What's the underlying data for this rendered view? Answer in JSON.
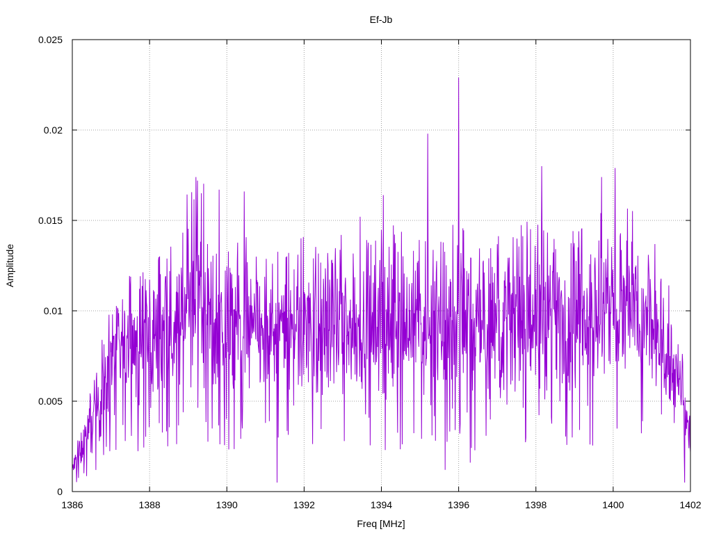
{
  "chart_data": {
    "type": "line",
    "title": "Ef-Jb",
    "xlabel": "Freq [MHz]",
    "ylabel": "Amplitude",
    "xlim": [
      1386,
      1402
    ],
    "ylim": [
      0,
      0.025
    ],
    "xticks": [
      1386,
      1388,
      1390,
      1392,
      1394,
      1396,
      1398,
      1400,
      1402
    ],
    "xtick_labels": [
      "1386",
      "1388",
      "1390",
      "1392",
      "1394",
      "1396",
      "1398",
      "1400",
      "1402"
    ],
    "yticks": [
      0,
      0.005,
      0.01,
      0.015,
      0.02,
      0.025
    ],
    "ytick_labels": [
      "0",
      "0.005",
      "0.01",
      "0.015",
      "0.02",
      "0.025"
    ],
    "grid": true,
    "legend": "none",
    "series_color": "#9400d3",
    "envelope_x": [
      1386.0,
      1386.2,
      1386.5,
      1386.8,
      1387.0,
      1387.5,
      1388.0,
      1388.5,
      1389.0,
      1389.3,
      1389.6,
      1390.0,
      1391.0,
      1392.0,
      1393.0,
      1394.0,
      1395.0,
      1396.0,
      1397.0,
      1398.0,
      1399.0,
      1400.0,
      1400.5,
      1401.0,
      1401.5,
      1401.8,
      1402.0
    ],
    "envelope_y": [
      0.0012,
      0.0022,
      0.0038,
      0.0055,
      0.0072,
      0.008,
      0.0085,
      0.0088,
      0.0105,
      0.011,
      0.01,
      0.009,
      0.0088,
      0.009,
      0.009,
      0.0092,
      0.0095,
      0.0092,
      0.009,
      0.0095,
      0.0098,
      0.01,
      0.0098,
      0.009,
      0.0072,
      0.005,
      0.003
    ],
    "peaks": [
      {
        "x": 1389.2,
        "y": 0.0174
      },
      {
        "x": 1389.8,
        "y": 0.0167
      },
      {
        "x": 1390.45,
        "y": 0.0166
      },
      {
        "x": 1393.45,
        "y": 0.0152
      },
      {
        "x": 1394.05,
        "y": 0.0164
      },
      {
        "x": 1395.2,
        "y": 0.0198
      },
      {
        "x": 1396.0,
        "y": 0.0229
      },
      {
        "x": 1398.15,
        "y": 0.018
      },
      {
        "x": 1399.7,
        "y": 0.0174
      },
      {
        "x": 1400.05,
        "y": 0.0179
      }
    ],
    "dips": [
      {
        "x": 1391.3,
        "y": 0.0005
      },
      {
        "x": 1395.65,
        "y": 0.0012
      },
      {
        "x": 1396.3,
        "y": 0.0016
      },
      {
        "x": 1394.1,
        "y": 0.0023
      },
      {
        "x": 1401.85,
        "y": 0.0005
      }
    ]
  }
}
